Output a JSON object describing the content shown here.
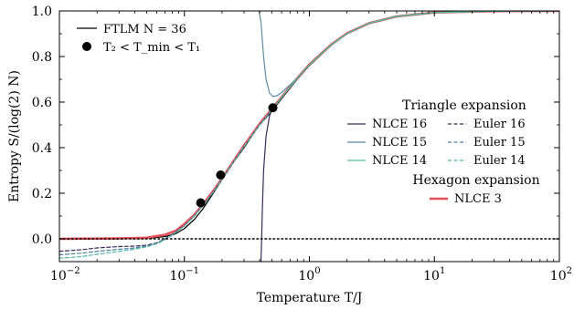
{
  "chart_data": {
    "type": "line",
    "xscale": "log",
    "xlim": [
      0.01,
      100
    ],
    "ylim": [
      -0.1,
      1.0
    ],
    "xlabel": "Temperature T/J",
    "ylabel": "Entropy S/(log(2) N)",
    "xticks": [
      {
        "value": 0.01,
        "mant": "10",
        "exp": "−2"
      },
      {
        "value": 0.1,
        "mant": "10",
        "exp": "−1"
      },
      {
        "value": 1,
        "mant": "10",
        "exp": "0"
      },
      {
        "value": 10,
        "mant": "10",
        "exp": "1"
      },
      {
        "value": 100,
        "mant": "10",
        "exp": "2"
      }
    ],
    "yticks": [
      {
        "value": 0.0,
        "label": "0.0"
      },
      {
        "value": 0.2,
        "label": "0.2"
      },
      {
        "value": 0.4,
        "label": "0.4"
      },
      {
        "value": 0.6,
        "label": "0.6"
      },
      {
        "value": 0.8,
        "label": "0.8"
      },
      {
        "value": 1.0,
        "label": "1.0"
      }
    ],
    "legend_top": {
      "placement": "top-left",
      "entries": [
        {
          "label": "FTLM N = 36",
          "marker": "line",
          "color": "#000000"
        },
        {
          "label": "T₂ < T_min < T₁",
          "marker": "dot",
          "color": "#000000"
        }
      ]
    },
    "legend_right": {
      "placement": "center-right",
      "triangle_title": "Triangle expansion",
      "hexagon_title": "Hexagon expansion",
      "entries": [
        {
          "label": "NLCE 16",
          "color": "#3b2a5a",
          "dash": false
        },
        {
          "label": "Euler 16",
          "color": "#3b2a5a",
          "dash": true
        },
        {
          "label": "NLCE 15",
          "color": "#5e8aa6",
          "dash": false
        },
        {
          "label": "Euler 15",
          "color": "#4f7fa6",
          "dash": true
        },
        {
          "label": "NLCE 14",
          "color": "#4fc49a",
          "dash": false
        },
        {
          "label": "Euler 14",
          "color": "#4fb8a3",
          "dash": true
        },
        {
          "label": "NLCE 3",
          "color": "#e8505b",
          "dash": false
        }
      ]
    },
    "series": [
      {
        "name": "FTLM N = 36",
        "color": "#000000",
        "dash": false,
        "width": 1.2,
        "points": [
          [
            0.01,
            0.0
          ],
          [
            0.03,
            0.0
          ],
          [
            0.05,
            0.002
          ],
          [
            0.07,
            0.01
          ],
          [
            0.085,
            0.022
          ],
          [
            0.1,
            0.045
          ],
          [
            0.12,
            0.085
          ],
          [
            0.14,
            0.13
          ],
          [
            0.17,
            0.2
          ],
          [
            0.2,
            0.26
          ],
          [
            0.25,
            0.34
          ],
          [
            0.3,
            0.4
          ],
          [
            0.35,
            0.455
          ],
          [
            0.4,
            0.5
          ],
          [
            0.5,
            0.56
          ],
          [
            0.6,
            0.615
          ],
          [
            0.8,
            0.7
          ],
          [
            1.0,
            0.76
          ],
          [
            1.5,
            0.85
          ],
          [
            2.0,
            0.9
          ],
          [
            3.0,
            0.945
          ],
          [
            5.0,
            0.975
          ],
          [
            10,
            0.993
          ],
          [
            30,
            0.999
          ],
          [
            100,
            1.0
          ]
        ]
      },
      {
        "name": "NLCE 3",
        "color": "#e8505b",
        "dash": false,
        "width": 2.6,
        "points": [
          [
            0.01,
            0.0
          ],
          [
            0.03,
            0.002
          ],
          [
            0.05,
            0.005
          ],
          [
            0.07,
            0.018
          ],
          [
            0.085,
            0.035
          ],
          [
            0.1,
            0.065
          ],
          [
            0.12,
            0.105
          ],
          [
            0.14,
            0.15
          ],
          [
            0.17,
            0.21
          ],
          [
            0.2,
            0.265
          ],
          [
            0.25,
            0.345
          ],
          [
            0.3,
            0.41
          ],
          [
            0.35,
            0.46
          ],
          [
            0.4,
            0.505
          ],
          [
            0.5,
            0.57
          ],
          [
            0.6,
            0.622
          ],
          [
            0.8,
            0.705
          ],
          [
            1.0,
            0.765
          ],
          [
            1.5,
            0.853
          ],
          [
            2.0,
            0.902
          ],
          [
            3.0,
            0.946
          ],
          [
            5.0,
            0.976
          ],
          [
            10,
            0.993
          ],
          [
            30,
            0.999
          ],
          [
            100,
            1.0
          ]
        ]
      },
      {
        "name": "NLCE 16",
        "color": "#3b2a5a",
        "dash": false,
        "width": 1.2,
        "points": [
          [
            0.41,
            -0.1
          ],
          [
            0.415,
            0.0
          ],
          [
            0.42,
            0.12
          ],
          [
            0.43,
            0.3
          ],
          [
            0.45,
            0.45
          ],
          [
            0.48,
            0.54
          ],
          [
            0.5,
            0.565
          ],
          [
            0.6,
            0.618
          ],
          [
            0.8,
            0.703
          ],
          [
            1.0,
            0.764
          ],
          [
            1.5,
            0.852
          ],
          [
            2.0,
            0.901
          ],
          [
            3.0,
            0.946
          ],
          [
            5.0,
            0.976
          ],
          [
            10,
            0.993
          ],
          [
            30,
            0.999
          ],
          [
            100,
            1.0
          ]
        ]
      },
      {
        "name": "NLCE 15",
        "color": "#5e8aa6",
        "dash": false,
        "width": 1.2,
        "points": [
          [
            0.395,
            1.0
          ],
          [
            0.41,
            0.95
          ],
          [
            0.43,
            0.8
          ],
          [
            0.45,
            0.7
          ],
          [
            0.48,
            0.64
          ],
          [
            0.51,
            0.625
          ],
          [
            0.55,
            0.628
          ],
          [
            0.6,
            0.642
          ],
          [
            0.8,
            0.705
          ],
          [
            1.0,
            0.764
          ],
          [
            1.5,
            0.852
          ],
          [
            2.0,
            0.901
          ],
          [
            3.0,
            0.946
          ],
          [
            5.0,
            0.976
          ],
          [
            10,
            0.993
          ],
          [
            30,
            0.999
          ],
          [
            100,
            1.0
          ]
        ]
      },
      {
        "name": "NLCE 14",
        "color": "#4fc49a",
        "dash": false,
        "width": 1.2,
        "points": [
          [
            0.5,
            0.566
          ],
          [
            0.6,
            0.621
          ],
          [
            0.8,
            0.704
          ],
          [
            1.0,
            0.764
          ],
          [
            1.5,
            0.852
          ],
          [
            2.0,
            0.901
          ],
          [
            3.0,
            0.946
          ],
          [
            5.0,
            0.976
          ],
          [
            10,
            0.993
          ],
          [
            30,
            0.999
          ],
          [
            100,
            1.0
          ]
        ]
      },
      {
        "name": "Euler 16",
        "color": "#3b2a5a",
        "dash": true,
        "width": 1.2,
        "points": [
          [
            0.01,
            -0.055
          ],
          [
            0.015,
            -0.048
          ],
          [
            0.02,
            -0.04
          ],
          [
            0.03,
            -0.034
          ],
          [
            0.04,
            -0.032
          ],
          [
            0.05,
            -0.028
          ],
          [
            0.06,
            -0.018
          ],
          [
            0.07,
            0.0
          ],
          [
            0.08,
            0.02
          ],
          [
            0.1,
            0.058
          ],
          [
            0.12,
            0.1
          ],
          [
            0.14,
            0.145
          ],
          [
            0.17,
            0.205
          ],
          [
            0.2,
            0.262
          ],
          [
            0.25,
            0.342
          ],
          [
            0.3,
            0.405
          ],
          [
            0.4,
            0.5
          ],
          [
            0.5,
            0.566
          ]
        ]
      },
      {
        "name": "Euler 15",
        "color": "#4f7fa6",
        "dash": true,
        "width": 1.2,
        "points": [
          [
            0.01,
            -0.07
          ],
          [
            0.015,
            -0.063
          ],
          [
            0.02,
            -0.055
          ],
          [
            0.03,
            -0.046
          ],
          [
            0.04,
            -0.04
          ],
          [
            0.05,
            -0.032
          ],
          [
            0.06,
            -0.02
          ],
          [
            0.07,
            -0.002
          ],
          [
            0.08,
            0.018
          ],
          [
            0.1,
            0.057
          ],
          [
            0.12,
            0.1
          ],
          [
            0.14,
            0.145
          ],
          [
            0.17,
            0.205
          ],
          [
            0.2,
            0.262
          ],
          [
            0.25,
            0.342
          ],
          [
            0.3,
            0.405
          ],
          [
            0.4,
            0.5
          ],
          [
            0.5,
            0.566
          ]
        ]
      },
      {
        "name": "Euler 14",
        "color": "#4fb8a3",
        "dash": true,
        "width": 1.2,
        "points": [
          [
            0.01,
            -0.085
          ],
          [
            0.015,
            -0.078
          ],
          [
            0.02,
            -0.068
          ],
          [
            0.03,
            -0.055
          ],
          [
            0.04,
            -0.045
          ],
          [
            0.05,
            -0.035
          ],
          [
            0.06,
            -0.022
          ],
          [
            0.07,
            -0.004
          ],
          [
            0.08,
            0.016
          ],
          [
            0.1,
            0.056
          ],
          [
            0.12,
            0.1
          ],
          [
            0.14,
            0.145
          ],
          [
            0.17,
            0.205
          ],
          [
            0.2,
            0.262
          ],
          [
            0.25,
            0.342
          ],
          [
            0.3,
            0.405
          ],
          [
            0.4,
            0.5
          ],
          [
            0.5,
            0.566
          ]
        ]
      }
    ],
    "markers": [
      {
        "x": 0.135,
        "y": 0.158
      },
      {
        "x": 0.195,
        "y": 0.28
      },
      {
        "x": 0.51,
        "y": 0.575
      }
    ],
    "reference_line": {
      "y": 0.0,
      "style": "dotted",
      "color": "#000000"
    }
  }
}
